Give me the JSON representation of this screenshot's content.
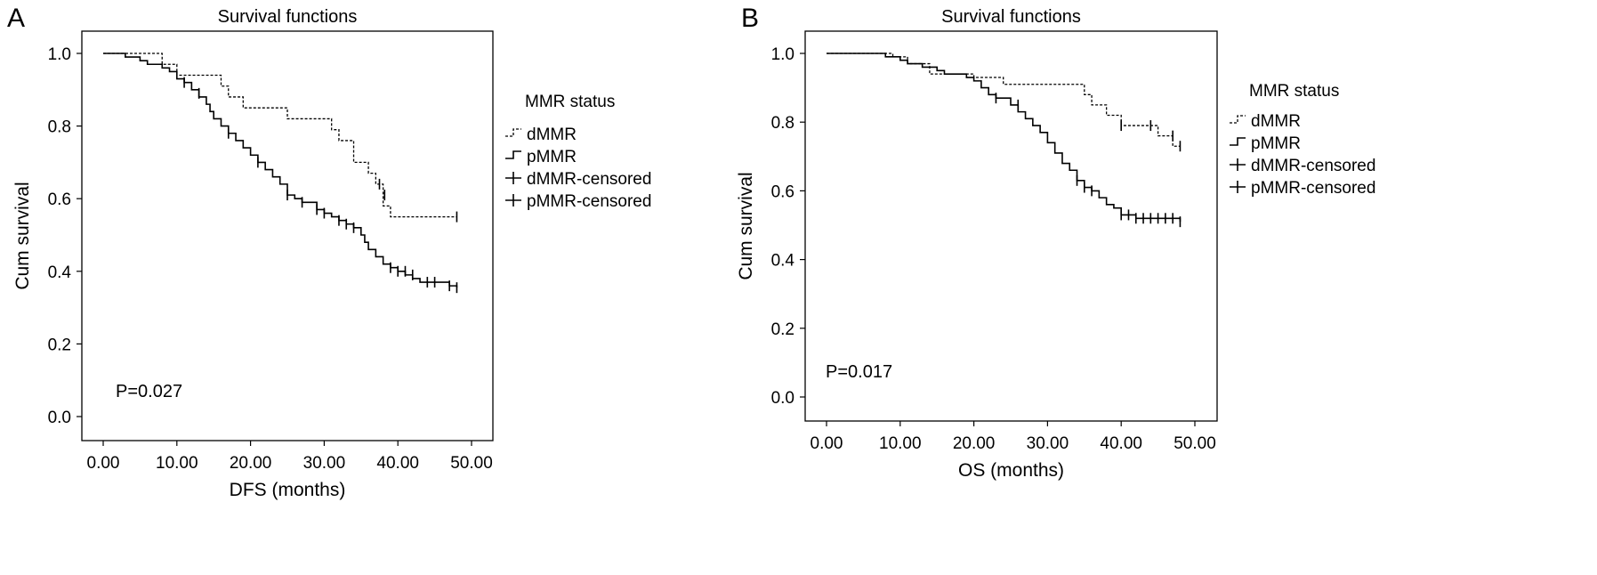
{
  "chart_data": [
    {
      "type": "line",
      "panel_label": "A",
      "title": "Survival functions",
      "xlabel": "DFS (months)",
      "ylabel": "Cum survival",
      "xlim": [
        0,
        48
      ],
      "ylim": [
        0,
        1
      ],
      "x_ticks": [
        "0.00",
        "10.00",
        "20.00",
        "30.00",
        "40.00",
        "50.00"
      ],
      "y_ticks": [
        "0.0",
        "0.2",
        "0.4",
        "0.6",
        "0.8",
        "1.0"
      ],
      "annotation": "P=0.027",
      "legend": {
        "title": "MMR status",
        "placement": "right",
        "entries": [
          "dMMR",
          "pMMR",
          "dMMR-censored",
          "pMMR-censored"
        ]
      },
      "series": [
        {
          "name": "dMMR",
          "style": "dashed",
          "steps": [
            [
              0,
              1.0
            ],
            [
              8,
              0.97
            ],
            [
              10,
              0.94
            ],
            [
              16,
              0.91
            ],
            [
              17,
              0.88
            ],
            [
              19,
              0.85
            ],
            [
              25,
              0.82
            ],
            [
              31,
              0.79
            ],
            [
              32,
              0.76
            ],
            [
              34,
              0.7
            ],
            [
              36,
              0.67
            ],
            [
              37,
              0.64
            ],
            [
              38,
              0.58
            ],
            [
              39,
              0.55
            ],
            [
              48,
              0.55
            ]
          ],
          "censored": [
            [
              37.5,
              0.64
            ],
            [
              38.2,
              0.61
            ],
            [
              48,
              0.55
            ]
          ]
        },
        {
          "name": "pMMR",
          "style": "solid",
          "steps": [
            [
              0,
              1.0
            ],
            [
              3,
              0.99
            ],
            [
              5,
              0.98
            ],
            [
              6,
              0.97
            ],
            [
              8,
              0.96
            ],
            [
              9,
              0.95
            ],
            [
              10,
              0.93
            ],
            [
              11,
              0.92
            ],
            [
              12,
              0.9
            ],
            [
              13,
              0.88
            ],
            [
              14,
              0.86
            ],
            [
              14.5,
              0.84
            ],
            [
              15,
              0.82
            ],
            [
              16,
              0.8
            ],
            [
              17,
              0.78
            ],
            [
              18,
              0.76
            ],
            [
              19,
              0.74
            ],
            [
              20,
              0.72
            ],
            [
              21,
              0.7
            ],
            [
              22,
              0.68
            ],
            [
              23,
              0.66
            ],
            [
              24,
              0.64
            ],
            [
              25,
              0.61
            ],
            [
              26,
              0.6
            ],
            [
              27,
              0.59
            ],
            [
              29,
              0.57
            ],
            [
              30,
              0.56
            ],
            [
              31,
              0.55
            ],
            [
              32,
              0.54
            ],
            [
              33,
              0.53
            ],
            [
              34,
              0.52
            ],
            [
              35,
              0.5
            ],
            [
              35.5,
              0.48
            ],
            [
              36,
              0.46
            ],
            [
              37,
              0.44
            ],
            [
              38,
              0.42
            ],
            [
              39,
              0.41
            ],
            [
              40,
              0.4
            ],
            [
              41,
              0.39
            ],
            [
              42,
              0.38
            ],
            [
              43,
              0.37
            ],
            [
              46,
              0.37
            ],
            [
              47,
              0.36
            ],
            [
              48,
              0.355
            ]
          ],
          "censored": [
            [
              11,
              0.92
            ],
            [
              13,
              0.89
            ],
            [
              17,
              0.78
            ],
            [
              21,
              0.7
            ],
            [
              25,
              0.61
            ],
            [
              27,
              0.59
            ],
            [
              29,
              0.57
            ],
            [
              30,
              0.56
            ],
            [
              32,
              0.54
            ],
            [
              33,
              0.53
            ],
            [
              34,
              0.52
            ],
            [
              39,
              0.41
            ],
            [
              40,
              0.4
            ],
            [
              41,
              0.4
            ],
            [
              42,
              0.39
            ],
            [
              44,
              0.37
            ],
            [
              45,
              0.37
            ],
            [
              47,
              0.36
            ],
            [
              48,
              0.355
            ]
          ]
        }
      ]
    },
    {
      "type": "line",
      "panel_label": "B",
      "title": "Survival functions",
      "xlabel": "OS (months)",
      "ylabel": "Cum survival",
      "xlim": [
        0,
        48
      ],
      "ylim": [
        0,
        1
      ],
      "x_ticks": [
        "0.00",
        "10.00",
        "20.00",
        "30.00",
        "40.00",
        "50.00"
      ],
      "y_ticks": [
        "0.0",
        "0.2",
        "0.4",
        "0.6",
        "0.8",
        "1.0"
      ],
      "annotation": "P=0.017",
      "legend": {
        "title": "MMR status",
        "placement": "right",
        "entries": [
          "dMMR",
          "pMMR",
          "dMMR-censored",
          "pMMR-censored"
        ]
      },
      "series": [
        {
          "name": "dMMR",
          "style": "dashed",
          "steps": [
            [
              0,
              1.0
            ],
            [
              9,
              0.99
            ],
            [
              11,
              0.97
            ],
            [
              14,
              0.94
            ],
            [
              20,
              0.93
            ],
            [
              24,
              0.91
            ],
            [
              35,
              0.88
            ],
            [
              36,
              0.85
            ],
            [
              38,
              0.82
            ],
            [
              40,
              0.79
            ],
            [
              44,
              0.79
            ],
            [
              45,
              0.76
            ],
            [
              47,
              0.73
            ],
            [
              48,
              0.73
            ]
          ],
          "censored": [
            [
              40,
              0.79
            ],
            [
              44,
              0.79
            ],
            [
              47,
              0.76
            ],
            [
              48,
              0.73
            ]
          ]
        },
        {
          "name": "pMMR",
          "style": "solid",
          "steps": [
            [
              0,
              1.0
            ],
            [
              8,
              0.99
            ],
            [
              10,
              0.98
            ],
            [
              11,
              0.97
            ],
            [
              13,
              0.96
            ],
            [
              15,
              0.95
            ],
            [
              16,
              0.94
            ],
            [
              19,
              0.93
            ],
            [
              20,
              0.92
            ],
            [
              21,
              0.9
            ],
            [
              22,
              0.88
            ],
            [
              23,
              0.87
            ],
            [
              25,
              0.85
            ],
            [
              26,
              0.83
            ],
            [
              27,
              0.81
            ],
            [
              28,
              0.79
            ],
            [
              29,
              0.77
            ],
            [
              30,
              0.74
            ],
            [
              31,
              0.71
            ],
            [
              32,
              0.68
            ],
            [
              33,
              0.66
            ],
            [
              34,
              0.63
            ],
            [
              35,
              0.61
            ],
            [
              36,
              0.6
            ],
            [
              37,
              0.58
            ],
            [
              38,
              0.56
            ],
            [
              39,
              0.55
            ],
            [
              40,
              0.53
            ],
            [
              41,
              0.53
            ],
            [
              42,
              0.52
            ],
            [
              48,
              0.51
            ]
          ],
          "censored": [
            [
              23,
              0.87
            ],
            [
              26,
              0.85
            ],
            [
              34,
              0.63
            ],
            [
              35,
              0.61
            ],
            [
              36,
              0.6
            ],
            [
              40,
              0.53
            ],
            [
              41,
              0.53
            ],
            [
              42,
              0.52
            ],
            [
              43,
              0.52
            ],
            [
              44,
              0.52
            ],
            [
              45,
              0.52
            ],
            [
              46,
              0.52
            ],
            [
              47,
              0.52
            ],
            [
              48,
              0.51
            ]
          ]
        }
      ]
    }
  ]
}
